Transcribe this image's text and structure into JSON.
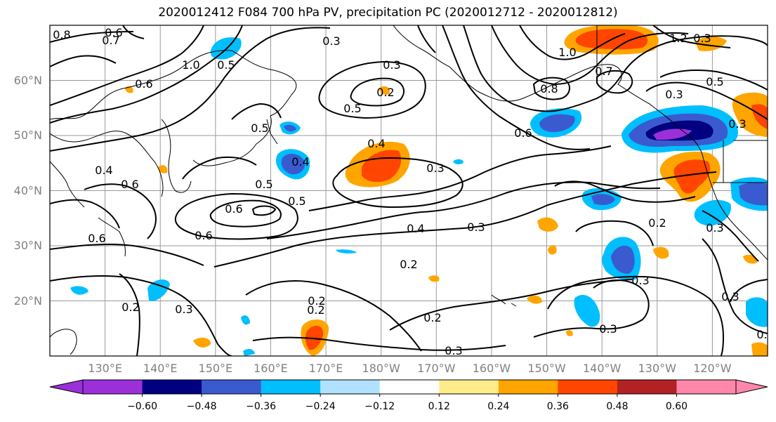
{
  "title": "2020012412 F084 700 hPa PV, precipitation PC (2020012712 - 2020012812)",
  "map": {
    "lat_labels": [
      "60°N",
      "50°N",
      "40°N",
      "30°N",
      "20°N"
    ],
    "lon_labels": [
      "130°E",
      "140°E",
      "150°E",
      "160°E",
      "170°E",
      "180°W",
      "170°W",
      "160°W",
      "150°W",
      "140°W",
      "130°W",
      "120°W"
    ],
    "lon_range": [
      120,
      250
    ],
    "lat_range": [
      10,
      70
    ],
    "grid": true
  },
  "contour_labels": [
    "0.8",
    "0.6",
    "0.7",
    "0.3",
    "1.0",
    "0.5",
    "0.3",
    "0.2",
    "1.2",
    "1.0",
    "0.7",
    "0.8",
    "0.5",
    "0.6",
    "0.3",
    "0.6",
    "0.5",
    "0.5",
    "0.4",
    "0.3",
    "0.6",
    "0.4",
    "0.4",
    "0.5",
    "0.3",
    "0.6",
    "0.5",
    "0.6",
    "0.6",
    "0.4",
    "0.3",
    "0.2",
    "0.3",
    "0.2",
    "0.2",
    "0.2",
    "0.3",
    "0.3",
    "0.2",
    "0.3",
    "0.3",
    "0.3",
    "0.2",
    "0.3",
    "0."
  ],
  "colorbar": {
    "colors": [
      "#9b30d9",
      "#000080",
      "#3a5bd0",
      "#00bfff",
      "#b0e2ff",
      "#ffffff",
      "#ffec8b",
      "#ffa500",
      "#ff4500",
      "#b22222",
      "#ff88aa"
    ],
    "tick_labels": [
      "−0.60",
      "−0.48",
      "−0.36",
      "−0.24",
      "−0.12",
      "0.12",
      "0.24",
      "0.36",
      "0.48",
      "0.60"
    ],
    "extend": "both"
  }
}
